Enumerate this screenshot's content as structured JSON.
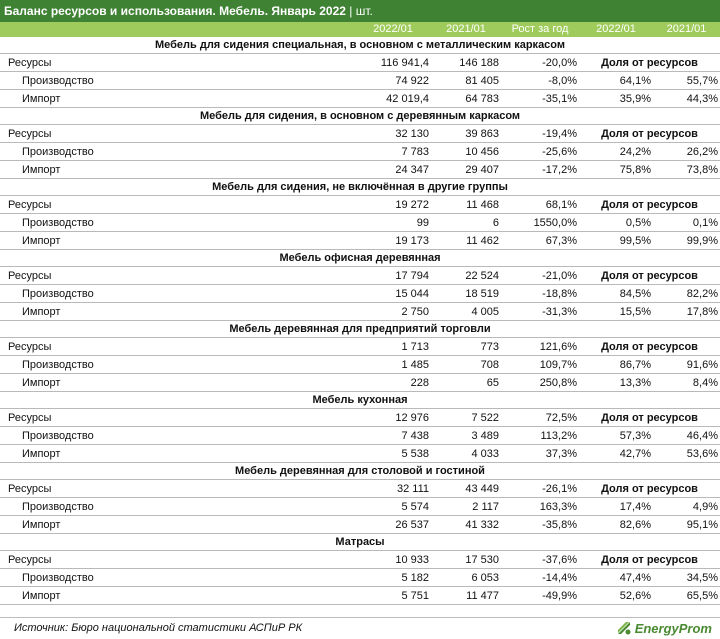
{
  "title": "Баланс ресурсов и использования. Мебель. Январь 2022",
  "unit": "шт.",
  "unit_separator": "|",
  "columns": [
    "2022/01",
    "2021/01",
    "Рост за год",
    "2022/01",
    "2021/01"
  ],
  "share_label": "Доля от ресурсов",
  "sections": [
    {
      "name": "Мебель для сидения специальная, в основном с металлическим каркасом",
      "resources": {
        "label": "Ресурсы",
        "v2022": "116 941,4",
        "v2021": "146 188",
        "growth": "-20,0%"
      },
      "production": {
        "label": "Производство",
        "v2022": "74 922",
        "v2021": "81 405",
        "growth": "-8,0%",
        "share2022": "64,1%",
        "share2021": "55,7%"
      },
      "import": {
        "label": "Импорт",
        "v2022": "42 019,4",
        "v2021": "64 783",
        "growth": "-35,1%",
        "share2022": "35,9%",
        "share2021": "44,3%"
      }
    },
    {
      "name": "Мебель для сидения, в основном с деревянным каркасом",
      "resources": {
        "label": "Ресурсы",
        "v2022": "32 130",
        "v2021": "39 863",
        "growth": "-19,4%"
      },
      "production": {
        "label": "Производство",
        "v2022": "7 783",
        "v2021": "10 456",
        "growth": "-25,6%",
        "share2022": "24,2%",
        "share2021": "26,2%"
      },
      "import": {
        "label": "Импорт",
        "v2022": "24 347",
        "v2021": "29 407",
        "growth": "-17,2%",
        "share2022": "75,8%",
        "share2021": "73,8%"
      }
    },
    {
      "name": "Мебель для сидения, не включённая в другие группы",
      "resources": {
        "label": "Ресурсы",
        "v2022": "19 272",
        "v2021": "11 468",
        "growth": "68,1%"
      },
      "production": {
        "label": "Производство",
        "v2022": "99",
        "v2021": "6",
        "growth": "1550,0%",
        "share2022": "0,5%",
        "share2021": "0,1%"
      },
      "import": {
        "label": "Импорт",
        "v2022": "19 173",
        "v2021": "11 462",
        "growth": "67,3%",
        "share2022": "99,5%",
        "share2021": "99,9%"
      }
    },
    {
      "name": "Мебель офисная деревянная",
      "resources": {
        "label": "Ресурсы",
        "v2022": "17 794",
        "v2021": "22 524",
        "growth": "-21,0%"
      },
      "production": {
        "label": "Производство",
        "v2022": "15 044",
        "v2021": "18 519",
        "growth": "-18,8%",
        "share2022": "84,5%",
        "share2021": "82,2%"
      },
      "import": {
        "label": "Импорт",
        "v2022": "2 750",
        "v2021": "4 005",
        "growth": "-31,3%",
        "share2022": "15,5%",
        "share2021": "17,8%"
      }
    },
    {
      "name": "Мебель деревянная для предприятий торговли",
      "resources": {
        "label": "Ресурсы",
        "v2022": "1 713",
        "v2021": "773",
        "growth": "121,6%"
      },
      "production": {
        "label": "Производство",
        "v2022": "1 485",
        "v2021": "708",
        "growth": "109,7%",
        "share2022": "86,7%",
        "share2021": "91,6%"
      },
      "import": {
        "label": "Импорт",
        "v2022": "228",
        "v2021": "65",
        "growth": "250,8%",
        "share2022": "13,3%",
        "share2021": "8,4%"
      }
    },
    {
      "name": "Мебель кухонная",
      "resources": {
        "label": "Ресурсы",
        "v2022": "12 976",
        "v2021": "7 522",
        "growth": "72,5%"
      },
      "production": {
        "label": "Производство",
        "v2022": "7 438",
        "v2021": "3 489",
        "growth": "113,2%",
        "share2022": "57,3%",
        "share2021": "46,4%"
      },
      "import": {
        "label": "Импорт",
        "v2022": "5 538",
        "v2021": "4 033",
        "growth": "37,3%",
        "share2022": "42,7%",
        "share2021": "53,6%"
      }
    },
    {
      "name": "Мебель деревянная для столовой и гостиной",
      "resources": {
        "label": "Ресурсы",
        "v2022": "32 111",
        "v2021": "43 449",
        "growth": "-26,1%"
      },
      "production": {
        "label": "Производство",
        "v2022": "5 574",
        "v2021": "2 117",
        "growth": "163,3%",
        "share2022": "17,4%",
        "share2021": "4,9%"
      },
      "import": {
        "label": "Импорт",
        "v2022": "26 537",
        "v2021": "41 332",
        "growth": "-35,8%",
        "share2022": "82,6%",
        "share2021": "95,1%"
      }
    },
    {
      "name": "Матрасы",
      "resources": {
        "label": "Ресурсы",
        "v2022": "10 933",
        "v2021": "17 530",
        "growth": "-37,6%"
      },
      "production": {
        "label": "Производство",
        "v2022": "5 182",
        "v2021": "6 053",
        "growth": "-14,4%",
        "share2022": "47,4%",
        "share2021": "34,5%"
      },
      "import": {
        "label": "Импорт",
        "v2022": "5 751",
        "v2021": "11 477",
        "growth": "-49,9%",
        "share2022": "52,6%",
        "share2021": "65,5%"
      }
    }
  ],
  "source": "Источник: Бюро национальной статистики АСПиР РК",
  "logo": "EnergyProm",
  "colors": {
    "title_bg": "#3f8233",
    "header_bg": "#9fcb5c",
    "logo": "#4a8a32"
  }
}
